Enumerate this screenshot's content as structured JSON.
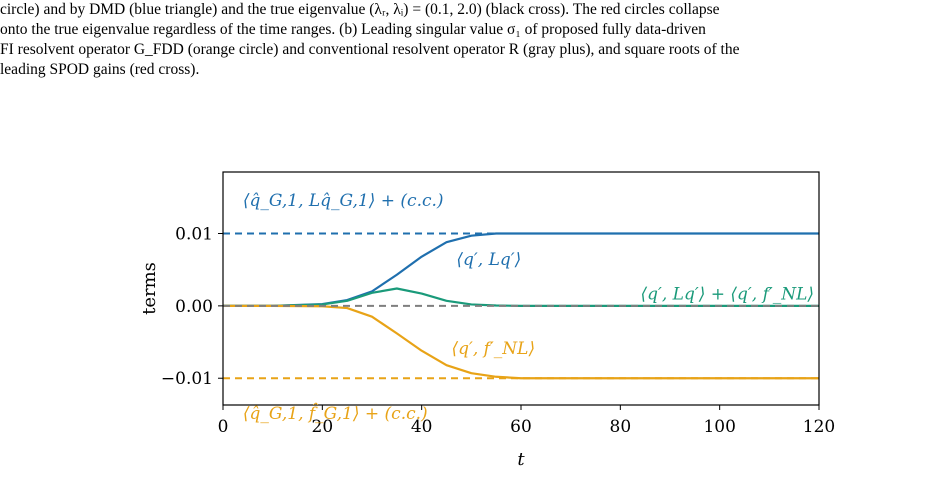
{
  "caption": {
    "line1": "circle) and by DMD (blue triangle) and the true eigenvalue (λᵣ, λᵢ) = (0.1, 2.0) (black cross). The red circles collapse",
    "line2": "onto the true eigenvalue regardless of the time ranges. (b) Leading singular value σ₁ of proposed fully data-driven",
    "line3": "FI resolvent operator G_FDD (orange circle) and conventional resolvent operator R (gray plus), and square roots of the",
    "line4": "leading SPOD gains (red cross)."
  },
  "colors": {
    "blue": "#1f6fae",
    "green": "#1a9a7a",
    "orange": "#e8a317",
    "gray": "#7f7f7f"
  },
  "chart_data": {
    "type": "line",
    "xlabel": "t",
    "ylabel": "terms",
    "xlim": [
      0,
      120
    ],
    "ylim": [
      -0.0137,
      0.0185
    ],
    "xticks": [
      0,
      20,
      40,
      60,
      80,
      100,
      120
    ],
    "xtick_labels": [
      "0",
      "20",
      "40",
      "60",
      "80",
      "100",
      "120"
    ],
    "yticks": [
      0.01,
      0.0,
      -0.01
    ],
    "ytick_labels": [
      "0.01",
      "0.00",
      "−0.01"
    ],
    "grid": false,
    "legend": "none",
    "series": [
      {
        "color_key": "blue",
        "style": "solid",
        "x": [
          0,
          10,
          20,
          25,
          30,
          35,
          40,
          45,
          50,
          55,
          60,
          70,
          80,
          100,
          120
        ],
        "y": [
          0.0,
          0.0,
          0.00025,
          0.0008,
          0.002,
          0.0043,
          0.0068,
          0.0088,
          0.0097,
          0.01,
          0.01,
          0.01,
          0.01,
          0.01,
          0.01
        ]
      },
      {
        "color_key": "green",
        "style": "solid",
        "x": [
          0,
          10,
          20,
          25,
          30,
          35,
          40,
          45,
          50,
          55,
          60,
          70,
          80,
          100,
          120
        ],
        "y": [
          0.0,
          0.0,
          0.0002,
          0.0007,
          0.0018,
          0.0024,
          0.0017,
          0.0007,
          0.0002,
          5e-05,
          0.0,
          0.0,
          0.0,
          0.0,
          0.0
        ]
      },
      {
        "color_key": "orange",
        "style": "solid",
        "x": [
          0,
          10,
          20,
          25,
          30,
          35,
          40,
          45,
          50,
          55,
          60,
          70,
          80,
          100,
          120
        ],
        "y": [
          0.0,
          0.0,
          -5e-05,
          -0.0003,
          -0.0015,
          -0.0038,
          -0.0062,
          -0.0082,
          -0.0093,
          -0.0098,
          -0.01,
          -0.01,
          -0.01,
          -0.01,
          -0.01
        ]
      },
      {
        "color_key": "blue",
        "style": "dashed",
        "x": [
          0,
          120
        ],
        "y": [
          0.01,
          0.01
        ]
      },
      {
        "color_key": "orange",
        "style": "dashed",
        "x": [
          0,
          120
        ],
        "y": [
          -0.01,
          -0.01
        ]
      },
      {
        "color_key": "gray",
        "style": "dashed",
        "x": [
          0,
          120
        ],
        "y": [
          0.0,
          0.0
        ]
      }
    ],
    "annotations": [
      {
        "text": "⟨q̂_G,1, Lq̂_G,1⟩ + (c.c.)",
        "color_key": "blue",
        "x": 4,
        "y": 0.0146,
        "anchor": "start"
      },
      {
        "text": "⟨q′, Lq′⟩",
        "color_key": "blue",
        "x": 47,
        "y": 0.0065,
        "anchor": "start"
      },
      {
        "text": "⟨q′, Lq′⟩ + ⟨q′, f′_NL⟩",
        "color_key": "green",
        "x": 119,
        "y": 0.0017,
        "anchor": "end"
      },
      {
        "text": "⟨q′, f′_NL⟩",
        "color_key": "orange",
        "x": 46,
        "y": -0.0058,
        "anchor": "start"
      },
      {
        "text": "⟨q̂_G,1, f̂_G,1⟩ + (c.c.)",
        "color_key": "orange",
        "x": 4,
        "y": -0.0148,
        "anchor": "start"
      }
    ]
  }
}
